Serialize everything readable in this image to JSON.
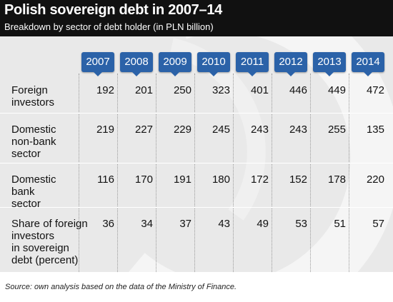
{
  "header": {
    "title": "Polish sovereign debt in 2007–14",
    "subtitle": "Breakdown by sector of debt holder (in PLN billion)"
  },
  "footer": {
    "source": "Source: own analysis based on the data of the Ministry of Finance."
  },
  "colors": {
    "header_bg": "#111111",
    "badge_bg": "#2b62a8",
    "body_bg": "#e9e9e9"
  },
  "chart_data": {
    "type": "table",
    "title": "Polish sovereign debt in 2007–14",
    "subtitle": "Breakdown by sector of debt holder (in PLN billion)",
    "columns": [
      "2007",
      "2008",
      "2009",
      "2010",
      "2011",
      "2012",
      "2013",
      "2014"
    ],
    "rows": [
      {
        "label": [
          "Foreign",
          "investors"
        ],
        "values": [
          192,
          201,
          250,
          323,
          401,
          446,
          449,
          472
        ]
      },
      {
        "label": [
          "Domestic",
          "non-bank",
          "sector"
        ],
        "values": [
          219,
          227,
          229,
          245,
          243,
          243,
          255,
          135
        ]
      },
      {
        "label": [
          "Domestic",
          "bank",
          "sector"
        ],
        "values": [
          116,
          170,
          191,
          180,
          172,
          152,
          178,
          220
        ]
      },
      {
        "label": [
          "Share of foreign",
          "investors",
          "in sovereign",
          "debt (percent)"
        ],
        "values": [
          36,
          34,
          37,
          43,
          49,
          53,
          51,
          57
        ]
      }
    ]
  }
}
